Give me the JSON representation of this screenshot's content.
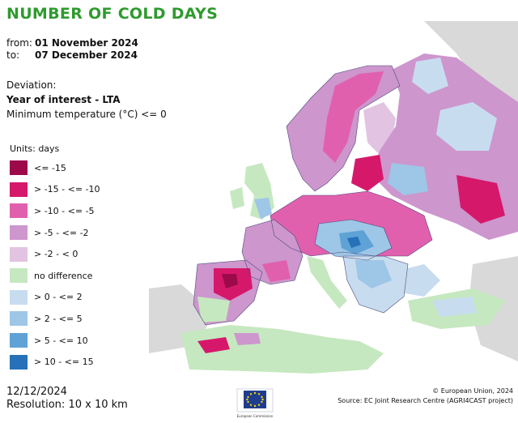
{
  "header": {
    "title": "NUMBER OF COLD DAYS",
    "from_label": "from:",
    "from_date": "01 November 2024",
    "to_label": "to:",
    "to_date": "07 December 2024"
  },
  "deviation": {
    "label": "Deviation:",
    "type": "Year of interest - LTA",
    "criterion": "Minimum temperature (°C) <= 0"
  },
  "legend": {
    "units": "Units: days",
    "items": [
      {
        "label": "<= -15",
        "color": "#9c0a4a"
      },
      {
        "label": "> -15 - <= -10",
        "color": "#d6186b"
      },
      {
        "label": "> -10 - <= -5",
        "color": "#e160ad"
      },
      {
        "label": "> -5 - <= -2",
        "color": "#cd96cd"
      },
      {
        "label": "> -2 - < 0",
        "color": "#e2c4e2"
      },
      {
        "label": "no difference",
        "color": "#c6e8c0"
      },
      {
        "label": "> 0 - <= 2",
        "color": "#c8dcf0"
      },
      {
        "label": "> 2 - <= 5",
        "color": "#9ec6e6"
      },
      {
        "label": "> 5 - <= 10",
        "color": "#5ea2d6"
      },
      {
        "label": "> 10 - <= 15",
        "color": "#2671b8"
      }
    ]
  },
  "footer": {
    "issue_date": "12/12/2024",
    "resolution": "Resolution: 10 x 10 km",
    "copyright": "© European Union, 2024",
    "source": "Source: EC Joint Research Centre (AGRI4CAST project)",
    "logo_text": "European Commission"
  },
  "colors": {
    "sea": "#ffffff",
    "outside_land": "#d9d9d9",
    "title": "#2e9a2e",
    "border": "#4a4a7a"
  },
  "icons": {
    "eu_logo": "eu-flag-icon"
  }
}
